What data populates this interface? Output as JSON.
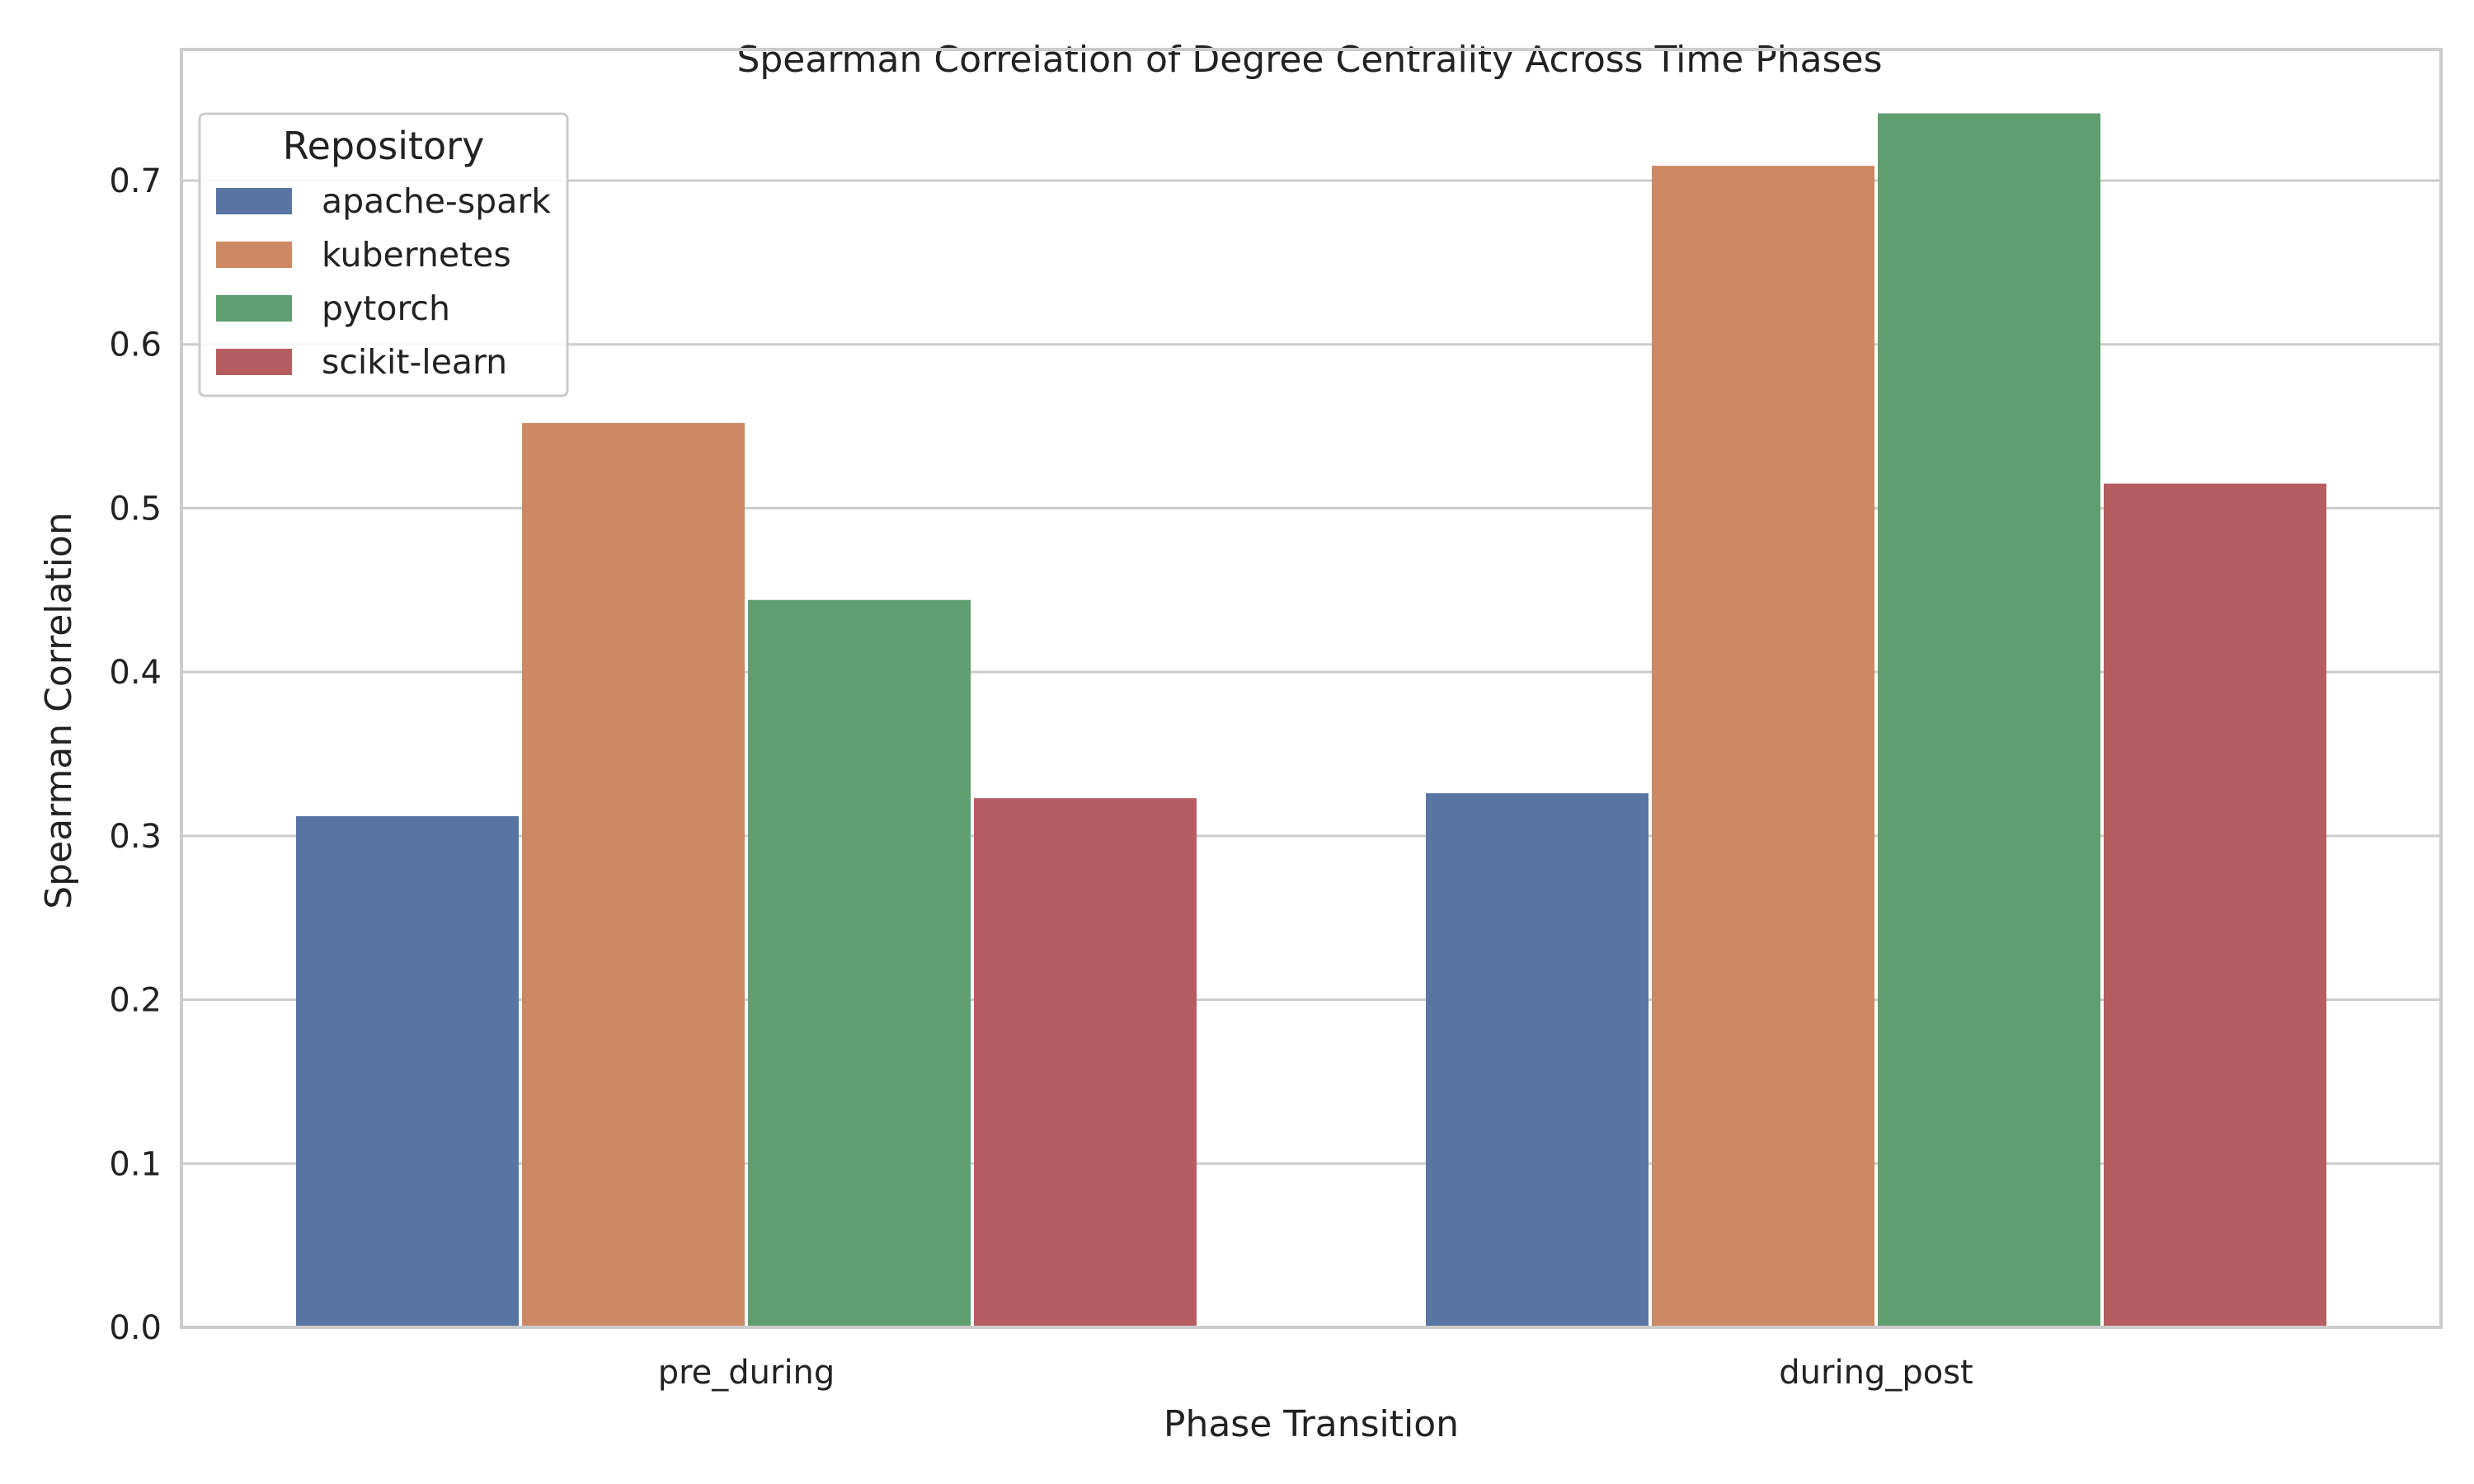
{
  "chart_data": {
    "type": "bar",
    "title": "Spearman Correlation of Degree Centrality Across Time Phases",
    "xlabel": "Phase Transition",
    "ylabel": "Spearman Correlation",
    "categories": [
      "pre_during",
      "during_post"
    ],
    "series": [
      {
        "name": "apache-spark",
        "color": "#5975a4",
        "values": [
          0.312,
          0.326
        ]
      },
      {
        "name": "kubernetes",
        "color": "#cc8963",
        "values": [
          0.552,
          0.709
        ]
      },
      {
        "name": "pytorch",
        "color": "#5f9e6e",
        "values": [
          0.444,
          0.741
        ]
      },
      {
        "name": "scikit-learn",
        "color": "#b55d60",
        "values": [
          0.323,
          0.515
        ]
      }
    ],
    "ylim": [
      0,
      0.78
    ],
    "yticks": [
      "0.0",
      "0.1",
      "0.2",
      "0.3",
      "0.4",
      "0.5",
      "0.6",
      "0.7"
    ],
    "grid": true,
    "legend": {
      "title": "Repository",
      "placement": "top-left"
    }
  }
}
